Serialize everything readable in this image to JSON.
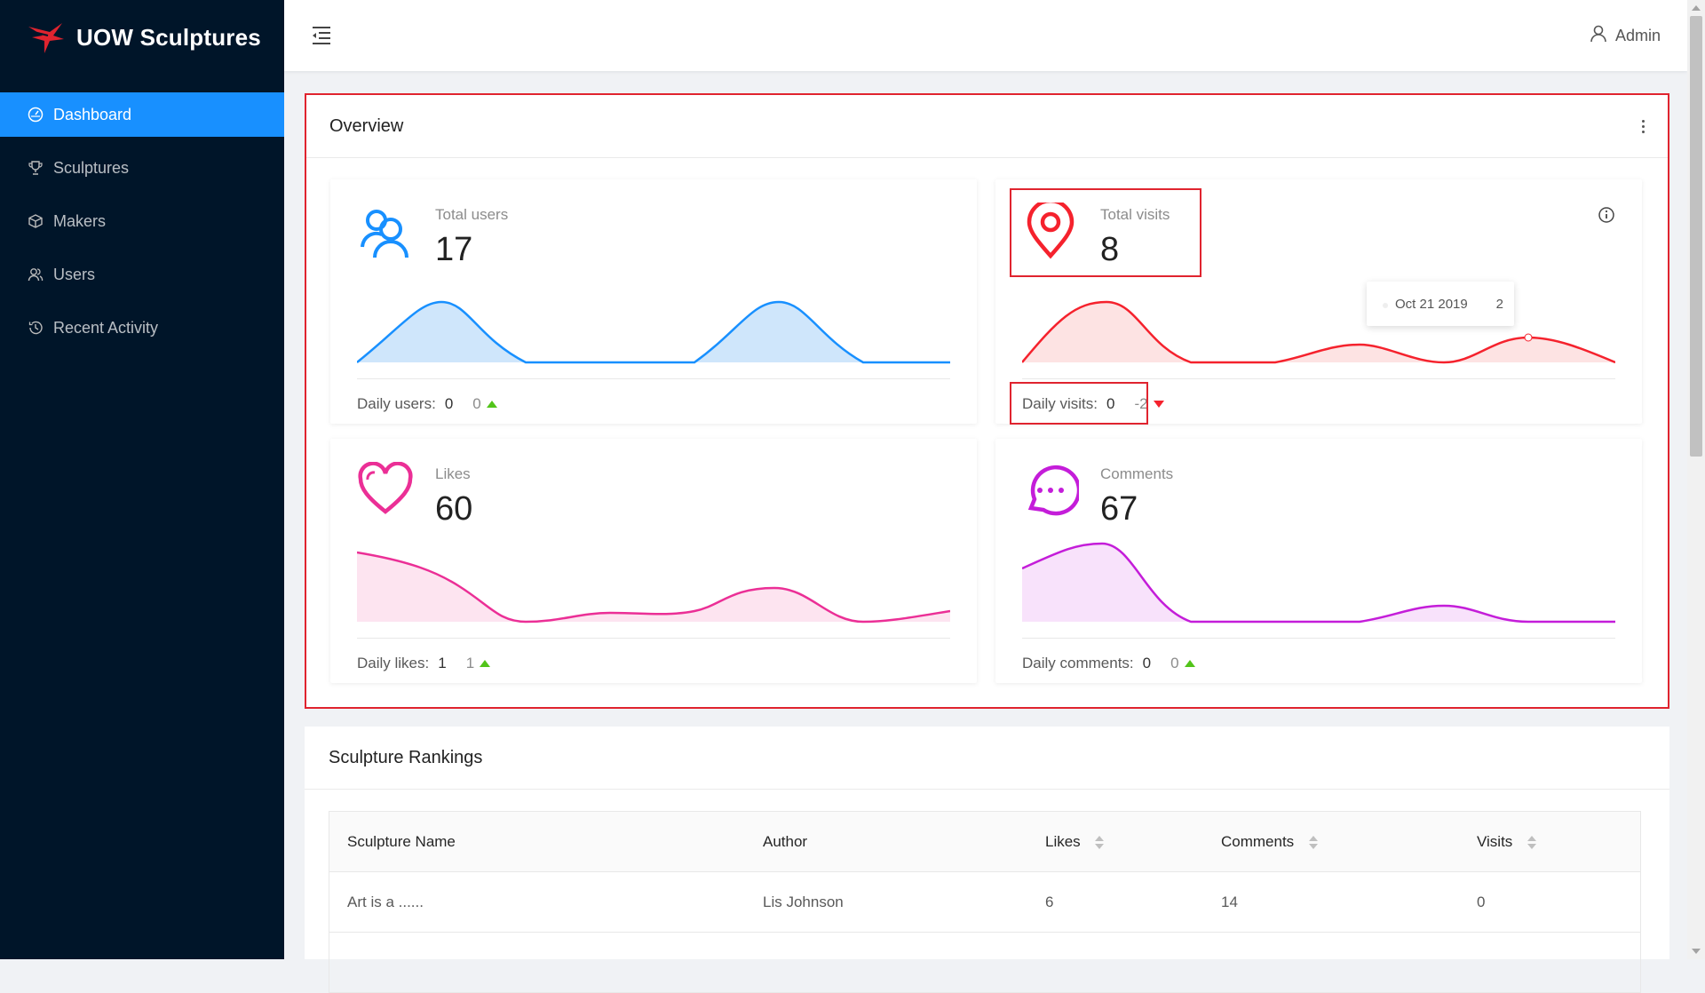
{
  "app": {
    "title": "UOW Sculptures",
    "logo_icon": "bird-logo-icon",
    "brand_color": "#e0242f"
  },
  "sidebar": {
    "items": [
      {
        "label": "Dashboard",
        "icon": "dashboard-icon",
        "active": true
      },
      {
        "label": "Sculptures",
        "icon": "trophy-icon",
        "active": false
      },
      {
        "label": "Makers",
        "icon": "cube-icon",
        "active": false
      },
      {
        "label": "Users",
        "icon": "users-icon",
        "active": false
      },
      {
        "label": "Recent Activity",
        "icon": "history-icon",
        "active": false
      }
    ]
  },
  "header": {
    "user_label": "Admin",
    "menu_icon": "menu-fold-icon",
    "user_icon": "user-icon"
  },
  "overview": {
    "title": "Overview",
    "cards": [
      {
        "label": "Total users",
        "value": "17",
        "foot_label": "Daily users:",
        "foot_value": "0",
        "trend_value": "0",
        "trend": "up",
        "color": "#1890ff",
        "icon": "team-icon"
      },
      {
        "label": "Total visits",
        "value": "8",
        "foot_label": "Daily visits:",
        "foot_value": "0",
        "trend_value": "-2",
        "trend": "down",
        "color": "#f5222d",
        "icon": "location-pin-icon"
      },
      {
        "label": "Likes",
        "value": "60",
        "foot_label": "Daily likes:",
        "foot_value": "1",
        "trend_value": "1",
        "trend": "up",
        "color": "#eb2f96",
        "icon": "heart-icon"
      },
      {
        "label": "Comments",
        "value": "67",
        "foot_label": "Daily comments:",
        "foot_value": "0",
        "trend_value": "0",
        "trend": "up",
        "color": "#c41dd9",
        "icon": "chat-bubble-icon"
      }
    ],
    "tooltip": {
      "date": "Oct 21 2019",
      "value": "2"
    }
  },
  "rankings": {
    "title": "Sculpture Rankings",
    "columns": [
      "Sculpture Name",
      "Author",
      "Likes",
      "Comments",
      "Visits"
    ],
    "rows": [
      [
        "Art is a ......",
        "Lis Johnson",
        "6",
        "14",
        "0"
      ]
    ]
  }
}
